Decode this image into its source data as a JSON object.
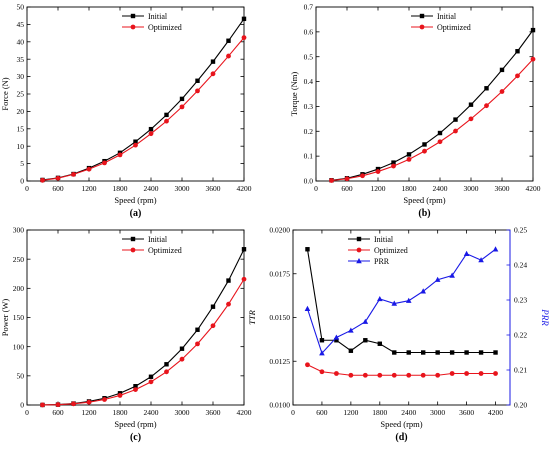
{
  "chart_data": [
    {
      "type": "line",
      "panel_label": "(a)",
      "xlabel": "Speed (rpm)",
      "ylabel": "Force (N)",
      "xlim": [
        0,
        4200
      ],
      "ylim": [
        0,
        50
      ],
      "xticks": [
        0,
        600,
        1200,
        1800,
        2400,
        3000,
        3600,
        4200
      ],
      "yticks": [
        0,
        5,
        10,
        15,
        20,
        25,
        30,
        35,
        40,
        45,
        50
      ],
      "grid": false,
      "legend_position": "top-left",
      "x": [
        300,
        600,
        900,
        1200,
        1500,
        1800,
        2100,
        2400,
        2700,
        3000,
        3300,
        3600,
        3900,
        4200
      ],
      "series": [
        {
          "name": "Initial",
          "color": "#000000",
          "marker": "square",
          "values": [
            0.3,
            0.9,
            2.0,
            3.7,
            5.7,
            8.1,
            11.3,
            14.9,
            19.0,
            23.6,
            28.8,
            34.3,
            40.3,
            46.6
          ]
        },
        {
          "name": "Optimized",
          "color": "#e8141c",
          "marker": "circle",
          "values": [
            0.2,
            0.8,
            1.9,
            3.4,
            5.2,
            7.5,
            10.3,
            13.6,
            17.2,
            21.3,
            25.9,
            30.8,
            35.9,
            41.2
          ]
        }
      ]
    },
    {
      "type": "line",
      "panel_label": "(b)",
      "xlabel": "Speed (rpm)",
      "ylabel": "Torque (Nm)",
      "xlim": [
        0,
        4200
      ],
      "ylim": [
        0,
        0.7
      ],
      "xticks": [
        0,
        600,
        1200,
        1800,
        2400,
        3000,
        3600,
        4200
      ],
      "yticks": [
        0.0,
        0.1,
        0.2,
        0.3,
        0.4,
        0.5,
        0.6,
        0.7
      ],
      "ytick_labels": [
        "0.0",
        "0.1",
        "0.2",
        "0.3",
        "0.4",
        "0.5",
        "0.6",
        "0.7"
      ],
      "grid": false,
      "legend_position": "top-left",
      "x": [
        300,
        600,
        900,
        1200,
        1500,
        1800,
        2100,
        2400,
        2700,
        3000,
        3300,
        3600,
        3900,
        4200
      ],
      "series": [
        {
          "name": "Initial",
          "color": "#000000",
          "marker": "square",
          "values": [
            0.003,
            0.011,
            0.027,
            0.048,
            0.074,
            0.107,
            0.147,
            0.193,
            0.247,
            0.307,
            0.373,
            0.447,
            0.522,
            0.607
          ]
        },
        {
          "name": "Optimized",
          "color": "#e8141c",
          "marker": "circle",
          "values": [
            0.002,
            0.009,
            0.021,
            0.038,
            0.06,
            0.087,
            0.12,
            0.158,
            0.201,
            0.25,
            0.303,
            0.36,
            0.423,
            0.49
          ]
        }
      ]
    },
    {
      "type": "line",
      "panel_label": "(c)",
      "xlabel": "Speed (rpm)",
      "ylabel": "Power (W)",
      "xlim": [
        0,
        4200
      ],
      "ylim": [
        0,
        300
      ],
      "xticks": [
        0,
        600,
        1200,
        1800,
        2400,
        3000,
        3600,
        4200
      ],
      "yticks": [
        0,
        50,
        100,
        150,
        200,
        250,
        300
      ],
      "grid": false,
      "legend_position": "top-left",
      "x": [
        300,
        600,
        900,
        1200,
        1500,
        1800,
        2100,
        2400,
        2700,
        3000,
        3300,
        3600,
        3900,
        4200
      ],
      "series": [
        {
          "name": "Initial",
          "color": "#000000",
          "marker": "square",
          "values": [
            0.1,
            0.7,
            2.5,
            6.1,
            11.6,
            20.1,
            32.2,
            48.4,
            69.8,
            96.5,
            129.0,
            168.5,
            213.3,
            267.0
          ]
        },
        {
          "name": "Optimized",
          "color": "#e8141c",
          "marker": "circle",
          "values": [
            0.1,
            0.6,
            2.0,
            4.8,
            9.4,
            16.4,
            26.4,
            39.7,
            56.9,
            78.5,
            104.8,
            135.9,
            172.9,
            215.6
          ]
        }
      ]
    },
    {
      "type": "line",
      "panel_label": "(d)",
      "xlabel": "Speed (rpm)",
      "ylabel": "TTR",
      "y2label": "PRR",
      "xlim": [
        0,
        4500
      ],
      "ylim": [
        0.01,
        0.02
      ],
      "y2lim": [
        0.2,
        0.25
      ],
      "xticks": [
        0,
        600,
        1200,
        1800,
        2400,
        3000,
        3600,
        4200
      ],
      "yticks": [
        0.01,
        0.0125,
        0.015,
        0.0175,
        0.02
      ],
      "ytick_labels": [
        "0.0100",
        "0.0125",
        "0.0150",
        "0.0175",
        "0.0200"
      ],
      "y2ticks": [
        0.2,
        0.21,
        0.22,
        0.23,
        0.24,
        0.25
      ],
      "y2tick_labels": [
        "0.20",
        "0.21",
        "0.22",
        "0.23",
        "0.24",
        "0.25"
      ],
      "y2_color": "#1919e6",
      "grid": false,
      "legend_position": "top-left",
      "x": [
        300,
        600,
        900,
        1200,
        1500,
        1800,
        2100,
        2400,
        2700,
        3000,
        3300,
        3600,
        3900,
        4200
      ],
      "series": [
        {
          "name": "Initial",
          "axis": "left",
          "color": "#000000",
          "marker": "square",
          "values": [
            0.0189,
            0.0137,
            0.0137,
            0.0131,
            0.0137,
            0.0135,
            0.013,
            0.013,
            0.013,
            0.013,
            0.013,
            0.013,
            0.013,
            0.013
          ]
        },
        {
          "name": "Optimized",
          "axis": "left",
          "color": "#e8141c",
          "marker": "circle",
          "values": [
            0.0123,
            0.0119,
            0.0118,
            0.0117,
            0.0117,
            0.0117,
            0.0117,
            0.0117,
            0.0117,
            0.0117,
            0.0118,
            0.0118,
            0.0118,
            0.0118
          ]
        },
        {
          "name": "PRR",
          "axis": "right",
          "color": "#1919e6",
          "marker": "triangle",
          "values": [
            0.2275,
            0.2148,
            0.2193,
            0.2213,
            0.2238,
            0.2303,
            0.229,
            0.2298,
            0.2325,
            0.2358,
            0.237,
            0.2432,
            0.2414,
            0.2445
          ]
        }
      ]
    }
  ]
}
